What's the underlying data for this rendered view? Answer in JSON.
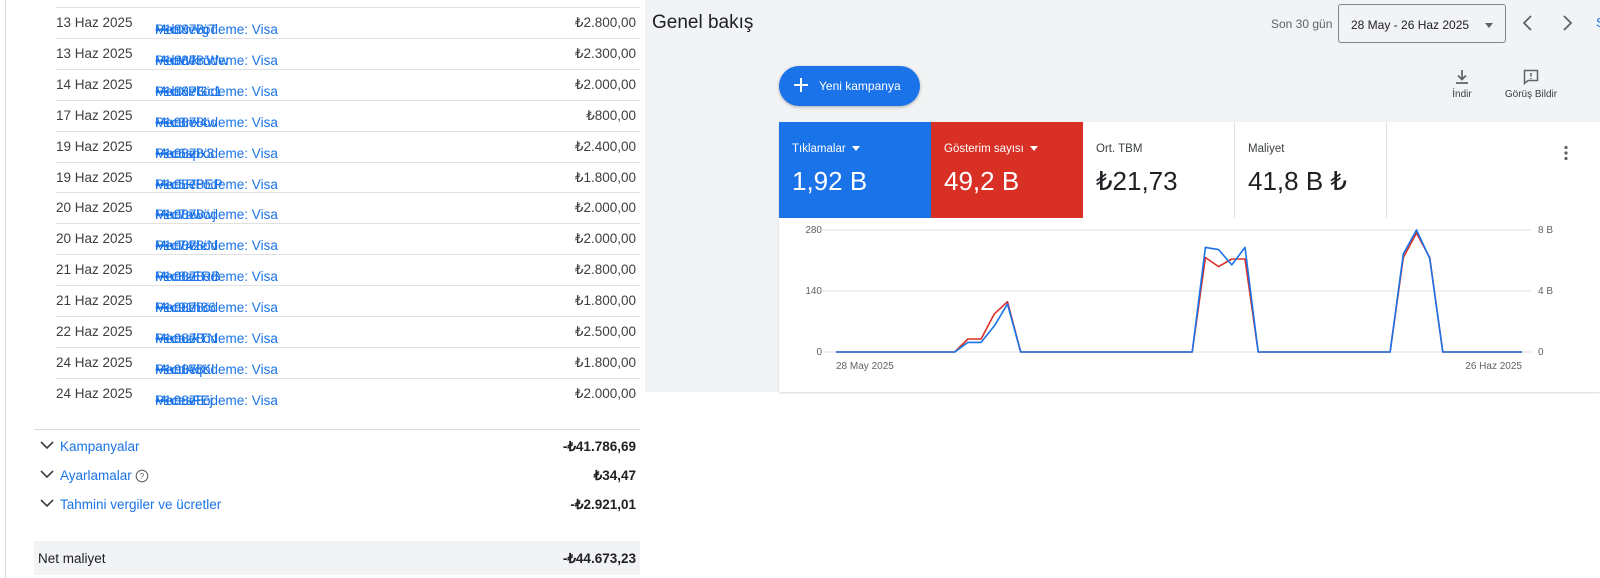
{
  "billing": {
    "transactions": [
      {
        "date": "13 Haz 2025",
        "desc": "Manuel ödeme: Visa",
        "card": "••••9878.",
        "ref": "P1bXvvgT",
        "amount": "₺2.800,00"
      },
      {
        "date": "13 Haz 2025",
        "desc": "Manuel ödeme: Visa",
        "card": "••••9878.",
        "ref": "P1bWknWw",
        "amount": "₺2.300,00"
      },
      {
        "date": "14 Haz 2025",
        "desc": "Manuel ödeme: Visa",
        "card": "••••9878.",
        "ref": "P1bXPGc1",
        "amount": "₺2.000,00"
      },
      {
        "date": "17 Haz 2025",
        "desc": "Manuel ödeme: Visa",
        "card": "••••9878.",
        "ref": "P1c3nx4w",
        "amount": "₺800,00"
      },
      {
        "date": "19 Haz 2025",
        "desc": "Manuel ödeme: Visa",
        "card": "••••9878.",
        "ref": "P1c6spx3",
        "amount": "₺2.400,00"
      },
      {
        "date": "19 Haz 2025",
        "desc": "Manuel ödeme: Visa",
        "card": "••••9878.",
        "ref": "P1c5RPEP",
        "amount": "₺1.800,00"
      },
      {
        "date": "20 Haz 2025",
        "desc": "Manuel ödeme: Visa",
        "card": "••••9878.",
        "ref": "P1c7awwj",
        "amount": "₺2.000,00"
      },
      {
        "date": "20 Haz 2025",
        "desc": "Manuel ödeme: Visa",
        "card": "••••9878.",
        "ref": "P1c74zeN",
        "amount": "₺2.000,00"
      },
      {
        "date": "21 Haz 2025",
        "desc": "Manuel ödeme: Visa",
        "card": "••••9878.",
        "ref": "P1c8zERB",
        "amount": "₺2.800,00"
      },
      {
        "date": "21 Haz 2025",
        "desc": "Manuel ödeme: Visa",
        "card": "••••9878.",
        "ref": "P1c91h86",
        "amount": "₺1.800,00"
      },
      {
        "date": "22 Haz 2025",
        "desc": "Manuel ödeme: Visa",
        "card": "••••9878.",
        "ref": "P1cazkTN",
        "amount": "₺2.500,00"
      },
      {
        "date": "24 Haz 2025",
        "desc": "Manuel ödeme: Visa",
        "card": "••••9878.",
        "ref": "P1cdAqKl",
        "amount": "₺1.800,00"
      },
      {
        "date": "24 Haz 2025",
        "desc": "Manuel ödeme: Visa",
        "card": "••••9878.",
        "ref": "P1cesFEj",
        "amount": "₺2.000,00"
      }
    ],
    "summary": {
      "campaigns": {
        "label": "Kampanyalar",
        "value": "-₺41.786,69"
      },
      "adjustments": {
        "label": "Ayarlamalar",
        "value": "₺34,47"
      },
      "taxes": {
        "label": "Tahmini vergiler ve ücretler",
        "value": "-₺2.921,01"
      }
    },
    "net_cost": {
      "label": "Net maliyet",
      "value": "-₺44.673,23"
    }
  },
  "overview": {
    "title": "Genel bakış",
    "range_label": "Son 30 gün",
    "date_range": "28 May - 26 Haz 2025",
    "edge_letter": "S",
    "new_campaign_label": "Yeni kampanya",
    "download_label": "İndir",
    "feedback_label": "Görüş Bildir",
    "metrics": {
      "clicks": {
        "label": "Tıklamalar",
        "value": "1,92 B"
      },
      "impressions": {
        "label": "Gösterim sayısı",
        "value": "49,2 B"
      },
      "avg_cpc": {
        "label": "Ort. TBM",
        "value": "₺21,73"
      },
      "cost": {
        "label": "Maliyet",
        "value": "41,8 B ₺"
      }
    },
    "colors": {
      "clicks": "#1a73e8",
      "impressions": "#d93025"
    }
  },
  "chart_data": {
    "type": "line",
    "x_start_label": "28 May 2025",
    "x_end_label": "26 Haz 2025",
    "left_axis_ticks": [
      "0",
      "140",
      "280"
    ],
    "right_axis_ticks": [
      "0",
      "4 B",
      "8 B"
    ],
    "ylim_left": [
      0,
      280
    ],
    "ylim_right": [
      0,
      8000
    ],
    "series": [
      {
        "name": "Tıklamalar",
        "axis": "left",
        "color": "#1a73e8",
        "values": [
          0,
          0,
          0,
          0,
          0,
          0,
          0,
          0,
          0,
          0,
          22,
          22,
          60,
          110,
          0,
          0,
          0,
          0,
          0,
          0,
          0,
          0,
          0,
          0,
          0,
          0,
          0,
          0,
          240,
          235,
          200,
          240,
          0,
          0,
          0,
          0,
          0,
          0,
          0,
          0,
          0,
          0,
          0,
          225,
          280,
          215,
          0,
          0,
          0,
          0,
          0,
          0,
          0
        ]
      },
      {
        "name": "Gösterim sayısı",
        "axis": "right",
        "color": "#d93025",
        "values": [
          0,
          0,
          0,
          0,
          0,
          0,
          0,
          0,
          0,
          0,
          850,
          850,
          2500,
          3300,
          0,
          0,
          0,
          0,
          0,
          0,
          0,
          0,
          0,
          0,
          0,
          0,
          0,
          0,
          6200,
          5600,
          6100,
          6100,
          0,
          0,
          0,
          0,
          0,
          0,
          0,
          0,
          0,
          0,
          0,
          6200,
          7800,
          6200,
          0,
          0,
          0,
          0,
          0,
          0,
          0
        ]
      }
    ],
    "grid": true
  }
}
